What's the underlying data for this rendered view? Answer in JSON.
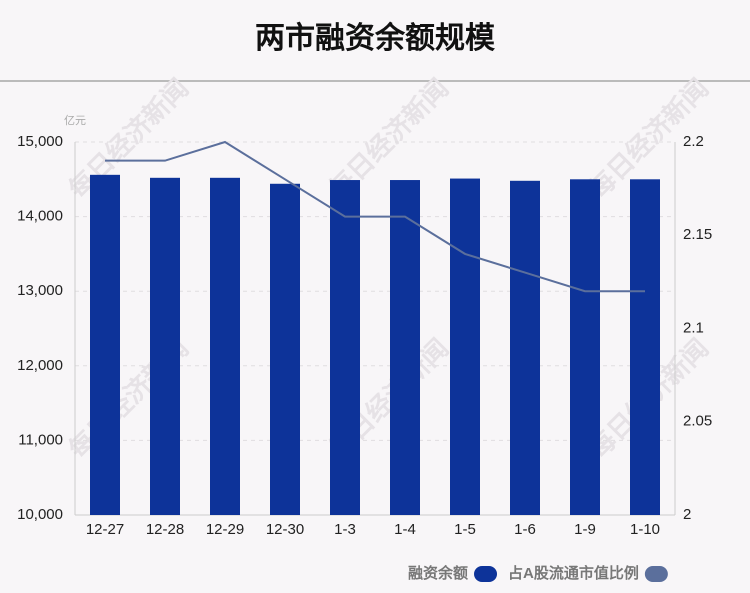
{
  "chart_data": {
    "type": "bar",
    "title": "两市融资余额规模",
    "unit": "亿元",
    "watermark": "每日经济新闻",
    "categories": [
      "12-27",
      "12-28",
      "12-29",
      "12-30",
      "1-3",
      "1-4",
      "1-5",
      "1-6",
      "1-9",
      "1-10"
    ],
    "series": [
      {
        "name": "融资余额",
        "type": "bar",
        "color": "#0d3399",
        "values": [
          14560,
          14520,
          14520,
          14440,
          14490,
          14490,
          14510,
          14480,
          14500,
          14500
        ]
      },
      {
        "name": "占A股流通市值比例",
        "type": "line",
        "axis": "y2",
        "color": "#5b6f9c",
        "values": [
          2.19,
          2.19,
          2.2,
          2.18,
          2.16,
          2.16,
          2.14,
          2.13,
          2.12,
          2.12
        ]
      }
    ],
    "ylim": [
      10000,
      15000
    ],
    "yticks": [
      {
        "value": 10000,
        "label": "10,000"
      },
      {
        "value": 11000,
        "label": "11,000"
      },
      {
        "value": 12000,
        "label": "12,000"
      },
      {
        "value": 13000,
        "label": "13,000"
      },
      {
        "value": 14000,
        "label": "14,000"
      },
      {
        "value": 15000,
        "label": "15,000"
      }
    ],
    "y2lim": [
      2,
      2.2
    ],
    "y2ticks": [
      2,
      2.05,
      2.1,
      2.15,
      2.2
    ],
    "grid": true,
    "legend": "bottom-right"
  }
}
